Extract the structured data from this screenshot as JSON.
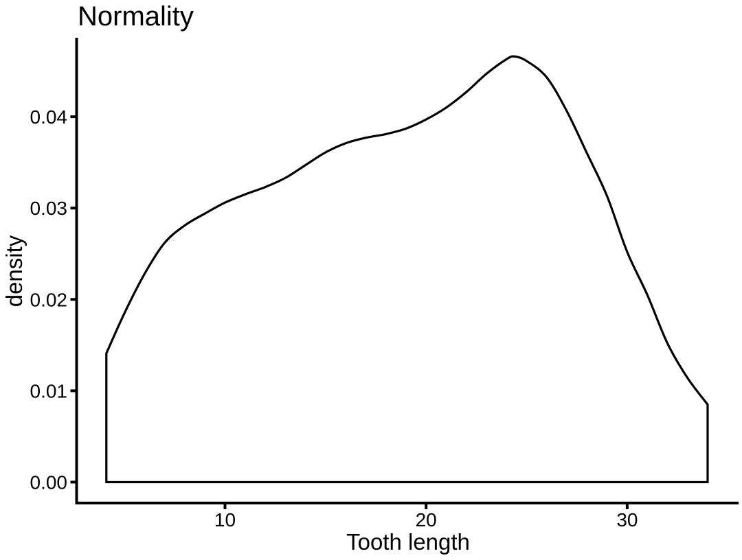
{
  "chart_data": {
    "type": "area",
    "title": "Normality",
    "xlabel": "Tooth length",
    "ylabel": "density",
    "x_ticks": [
      10,
      20,
      30
    ],
    "y_ticks": [
      0,
      0.01,
      0.02,
      0.03,
      0.04
    ],
    "y_tick_labels": [
      "0.00",
      "0.01",
      "0.02",
      "0.03",
      "0.04"
    ],
    "xlim": [
      2.7,
      35.4
    ],
    "ylim": [
      -0.0023,
      0.0488
    ],
    "grid": false,
    "legend_position": "none",
    "line_color": "#000000",
    "fill_color": "#ffffff",
    "background_color": "#ffffff",
    "series": [
      {
        "name": "density curve of Tooth length",
        "closed_to_zero": true,
        "peak": {
          "x": 24.4,
          "density": 0.0466
        },
        "points": [
          [
            4.1,
            0.0141
          ],
          [
            5.0,
            0.0185
          ],
          [
            6.0,
            0.0228
          ],
          [
            7.0,
            0.0262
          ],
          [
            8.0,
            0.0281
          ],
          [
            9.0,
            0.0294
          ],
          [
            10.0,
            0.0306
          ],
          [
            11.0,
            0.0315
          ],
          [
            12.0,
            0.0323
          ],
          [
            13.0,
            0.0333
          ],
          [
            14.0,
            0.0347
          ],
          [
            15.0,
            0.0361
          ],
          [
            16.0,
            0.0371
          ],
          [
            17.0,
            0.0377
          ],
          [
            18.0,
            0.0381
          ],
          [
            19.0,
            0.0387
          ],
          [
            20.0,
            0.0397
          ],
          [
            21.0,
            0.041
          ],
          [
            22.0,
            0.0427
          ],
          [
            23.0,
            0.0447
          ],
          [
            24.0,
            0.0463
          ],
          [
            24.4,
            0.0466
          ],
          [
            25.0,
            0.0461
          ],
          [
            26.0,
            0.0443
          ],
          [
            27.0,
            0.0406
          ],
          [
            28.0,
            0.036
          ],
          [
            29.0,
            0.0313
          ],
          [
            30.0,
            0.0252
          ],
          [
            31.0,
            0.0205
          ],
          [
            32.0,
            0.0152
          ],
          [
            33.0,
            0.0114
          ],
          [
            34.0,
            0.0085
          ]
        ]
      }
    ]
  }
}
